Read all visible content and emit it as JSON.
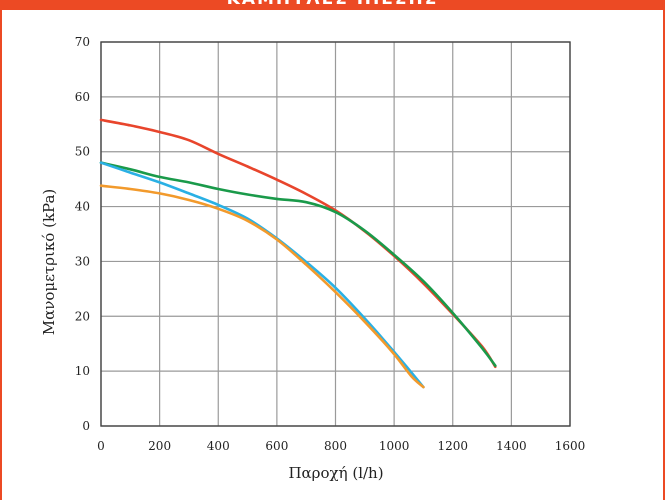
{
  "banner": {
    "text": "ΚΑΜΠΥΛΕΣ ΠΙΕΣΗΣ"
  },
  "colors": {
    "frame": "#ec4a24",
    "grid": "#9a9a9a",
    "axis": "#444444"
  },
  "chart_data": {
    "type": "line",
    "xlabel": "Παροχή (l/h)",
    "ylabel": "Μανομετρικό (kPa)",
    "xlim": [
      0,
      1600
    ],
    "ylim": [
      0,
      70
    ],
    "xticks": [
      0,
      200,
      400,
      600,
      800,
      1000,
      1200,
      1400,
      1600
    ],
    "yticks": [
      0,
      10,
      20,
      30,
      40,
      50,
      60,
      70
    ],
    "grid": true,
    "series": [
      {
        "color": "#e8452c",
        "x": [
          0,
          100,
          200,
          300,
          400,
          500,
          600,
          700,
          800,
          900,
          1000,
          1100,
          1200,
          1300,
          1345
        ],
        "y": [
          55.8,
          54.8,
          53.6,
          52.1,
          49.6,
          47.3,
          44.9,
          42.3,
          39.3,
          35.5,
          31.0,
          26.0,
          20.4,
          14.5,
          10.8
        ]
      },
      {
        "color": "#1a9a4a",
        "x": [
          0,
          100,
          200,
          300,
          400,
          500,
          600,
          700,
          800,
          900,
          1000,
          1100,
          1200,
          1300,
          1345
        ],
        "y": [
          48.0,
          46.8,
          45.4,
          44.4,
          43.2,
          42.2,
          41.4,
          40.8,
          39.0,
          35.6,
          31.2,
          26.4,
          20.6,
          14.2,
          11.0
        ]
      },
      {
        "color": "#2ab0e4",
        "x": [
          0,
          100,
          200,
          300,
          400,
          500,
          600,
          700,
          800,
          900,
          1000,
          1100
        ],
        "y": [
          48.0,
          46.2,
          44.4,
          42.4,
          40.3,
          37.8,
          34.2,
          29.9,
          25.2,
          19.6,
          13.5,
          7.1
        ]
      },
      {
        "color": "#f29a2c",
        "x": [
          0,
          100,
          200,
          300,
          400,
          500,
          600,
          700,
          800,
          900,
          1000,
          1060,
          1100
        ],
        "y": [
          43.8,
          43.2,
          42.4,
          41.2,
          39.6,
          37.4,
          34.0,
          29.4,
          24.4,
          19.0,
          13.1,
          9.0,
          7.1
        ]
      }
    ]
  }
}
